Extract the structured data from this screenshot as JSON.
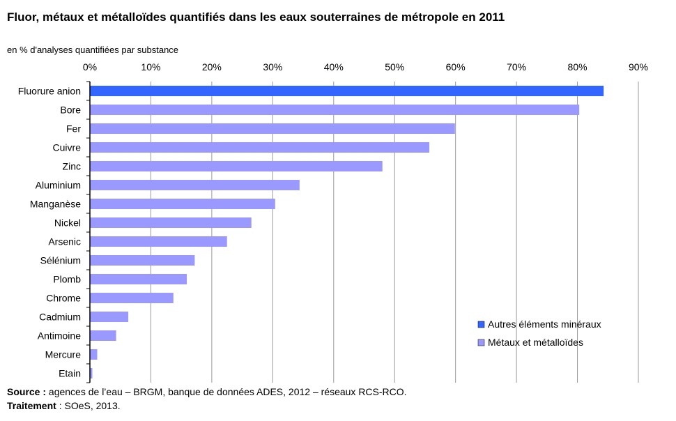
{
  "chart_data": {
    "type": "bar",
    "orientation": "horizontal",
    "title": "Fluor, métaux et métalloïdes quantifiés dans les eaux souterraines de métropole en 2011",
    "subtitle": "en % d'analyses quantifiées par substance",
    "categories": [
      "Fluorure anion",
      "Bore",
      "Fer",
      "Cuivre",
      "Zinc",
      "Aluminium",
      "Manganèse",
      "Nickel",
      "Arsenic",
      "Sélénium",
      "Plomb",
      "Chrome",
      "Cadmium",
      "Antimoine",
      "Mercure",
      "Etain"
    ],
    "values": [
      84.3,
      80.3,
      59.9,
      55.7,
      48.0,
      34.4,
      30.4,
      26.5,
      22.5,
      17.2,
      15.9,
      13.7,
      6.3,
      4.3,
      1.2,
      0.4
    ],
    "series_of_category": [
      0,
      1,
      1,
      1,
      1,
      1,
      1,
      1,
      1,
      1,
      1,
      1,
      1,
      1,
      1,
      1
    ],
    "legend": [
      {
        "name": "Autres éléments minéraux",
        "color": "#3366ff"
      },
      {
        "name": "Métaux et métalloïdes",
        "color": "#9999ff"
      }
    ],
    "legend_placement": "bottom-right",
    "xlim": [
      0,
      90
    ],
    "x_ticks": [
      "0%",
      "10%",
      "20%",
      "30%",
      "40%",
      "50%",
      "60%",
      "70%",
      "80%",
      "90%"
    ],
    "x_axis_position": "top",
    "grid": true
  },
  "footer": {
    "source_label": "Source :",
    "source_text": " agences de l’eau – BRGM, banque de données ADES, 2012 – réseaux RCS-RCO.",
    "treatment_label": "Traitement",
    "treatment_text": " : SOeS, 2013."
  }
}
